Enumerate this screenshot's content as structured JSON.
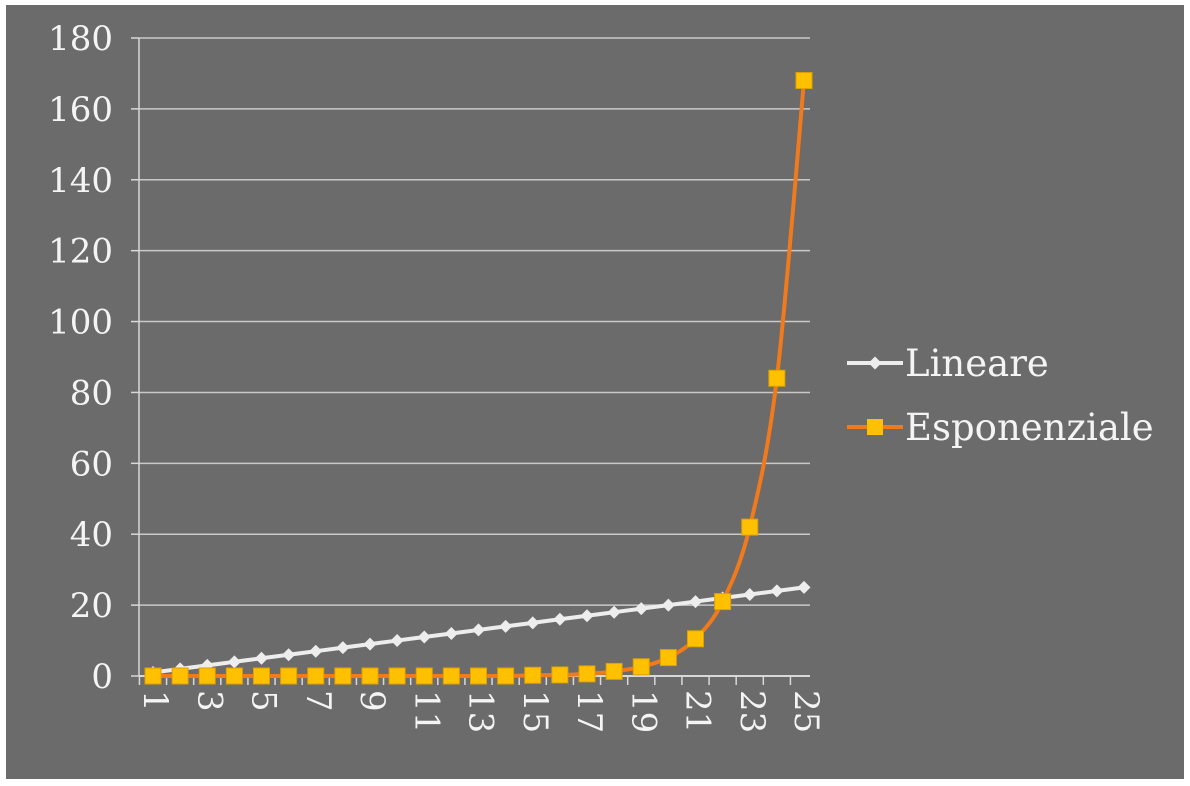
{
  "chart_data": {
    "type": "line",
    "title": "",
    "xlabel": "",
    "ylabel": "",
    "categories": [
      1,
      2,
      3,
      4,
      5,
      6,
      7,
      8,
      9,
      10,
      11,
      12,
      13,
      14,
      15,
      16,
      17,
      18,
      19,
      20,
      21,
      22,
      23,
      24,
      25
    ],
    "x_tick_labels": [
      "1",
      "3",
      "5",
      "7",
      "9",
      "11",
      "13",
      "15",
      "17",
      "19",
      "21",
      "23",
      "25"
    ],
    "ylim": [
      0,
      180
    ],
    "y_ticks": [
      0,
      20,
      40,
      60,
      80,
      100,
      120,
      140,
      160,
      180
    ],
    "grid": true,
    "legend_position": "right",
    "series": [
      {
        "name": "Lineare",
        "color": "#ededed",
        "marker": "diamond",
        "values": [
          1,
          2,
          3,
          4,
          5,
          6,
          7,
          8,
          9,
          10,
          11,
          12,
          13,
          14,
          15,
          16,
          17,
          18,
          19,
          20,
          21,
          22,
          23,
          24,
          25
        ]
      },
      {
        "name": "Esponenziale",
        "color": "#f07a1c",
        "marker_color": "#ffc000",
        "marker": "square",
        "values": [
          0,
          0,
          0,
          0,
          0,
          0,
          0,
          0,
          0,
          0,
          0,
          0,
          0,
          0,
          0.2,
          0.3,
          0.6,
          1.3,
          2.6,
          5.2,
          10.5,
          21,
          42,
          84,
          168
        ]
      }
    ]
  }
}
